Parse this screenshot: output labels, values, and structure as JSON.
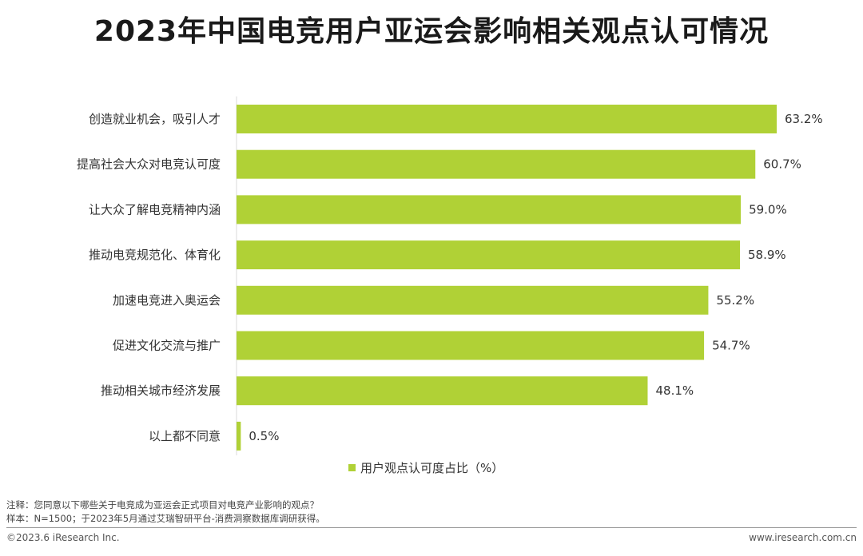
{
  "chart_data": {
    "type": "bar",
    "orientation": "horizontal",
    "title": "2023年中国电竞用户亚运会影响相关观点认可情况",
    "categories": [
      "创造就业机会，吸引人才",
      "提高社会大众对电竞认可度",
      "让大众了解电竞精神内涵",
      "推动电竞规范化、体育化",
      "加速电竞进入奥运会",
      "促进文化交流与推广",
      "推动相关城市经济发展",
      "以上都不同意"
    ],
    "series": [
      {
        "name": "用户观点认可度占比（%）",
        "values": [
          63.2,
          60.7,
          59.0,
          58.9,
          55.2,
          54.7,
          48.1,
          0.5
        ],
        "labels": [
          "63.2%",
          "60.7%",
          "59.0%",
          "58.9%",
          "55.2%",
          "54.7%",
          "48.1%",
          "0.5%"
        ]
      }
    ],
    "xlim": [
      0,
      63.2
    ],
    "grid": false,
    "legend_position": "bottom",
    "bar_color": "#b0d136"
  },
  "notes": {
    "note1": "注释：您同意以下哪些关于电竞成为亚运会正式项目对电竞产业影响的观点？",
    "note2": "样本：N=1500；于2023年5月通过艾瑞智研平台-消费洞察数据库调研获得。"
  },
  "footer": {
    "copyright": "©2023.6 iResearch Inc.",
    "website": "www.iresearch.com.cn"
  }
}
